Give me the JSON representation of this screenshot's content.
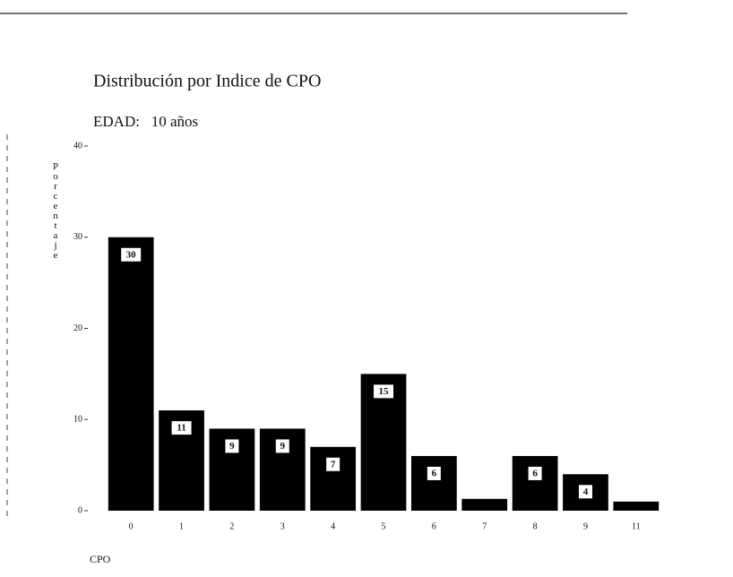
{
  "chart_data": {
    "type": "bar",
    "title": "Distribución por Indice de CPO",
    "subtitle": "EDAD:   10 años",
    "ylabel": "Porcentaje",
    "xlabel": "CPO",
    "categories": [
      "0",
      "1",
      "2",
      "3",
      "4",
      "5",
      "6",
      "7",
      "8",
      "9",
      "11"
    ],
    "values": [
      30,
      11,
      9,
      9,
      7,
      15,
      6,
      1.3,
      6,
      4,
      1
    ],
    "value_labels": [
      "30",
      "11",
      "9",
      "9",
      "7",
      "15",
      "6",
      null,
      "6",
      "4",
      null
    ],
    "color": "#000000",
    "ylim": [
      0,
      40
    ],
    "yticks": [
      0,
      10,
      20,
      30,
      40
    ],
    "grid": false
  }
}
